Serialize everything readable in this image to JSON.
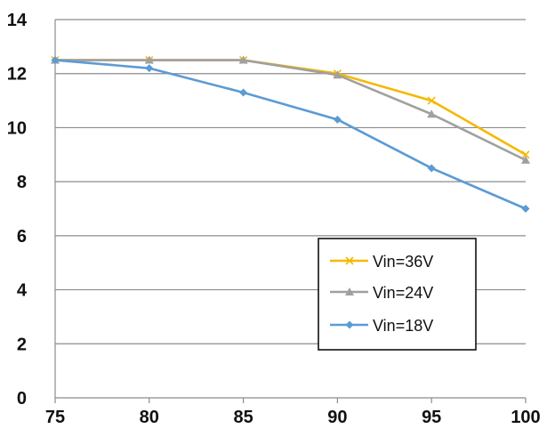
{
  "chart_data": {
    "type": "line",
    "title": "",
    "xlabel": "",
    "ylabel": "",
    "x": [
      75,
      80,
      85,
      90,
      95,
      100
    ],
    "xlim": [
      75,
      100
    ],
    "ylim": [
      0,
      14
    ],
    "x_ticks": [
      "75",
      "80",
      "85",
      "90",
      "95",
      "100"
    ],
    "y_ticks": [
      "0",
      "2",
      "4",
      "6",
      "8",
      "10",
      "12",
      "14"
    ],
    "grid": "horizontal",
    "legend_position": "bottom-right",
    "series": [
      {
        "name": "Vin=36V",
        "color": "#f5b800",
        "marker": "x",
        "values": [
          12.5,
          12.5,
          12.5,
          12.0,
          11.0,
          9.0
        ]
      },
      {
        "name": "Vin=24V",
        "color": "#a0a0a0",
        "marker": "triangle",
        "values": [
          12.5,
          12.5,
          12.5,
          11.95,
          10.5,
          8.8
        ]
      },
      {
        "name": "Vin=18V",
        "color": "#5b9bd5",
        "marker": "diamond",
        "values": [
          12.5,
          12.2,
          11.3,
          10.3,
          8.5,
          7.0
        ]
      }
    ]
  }
}
